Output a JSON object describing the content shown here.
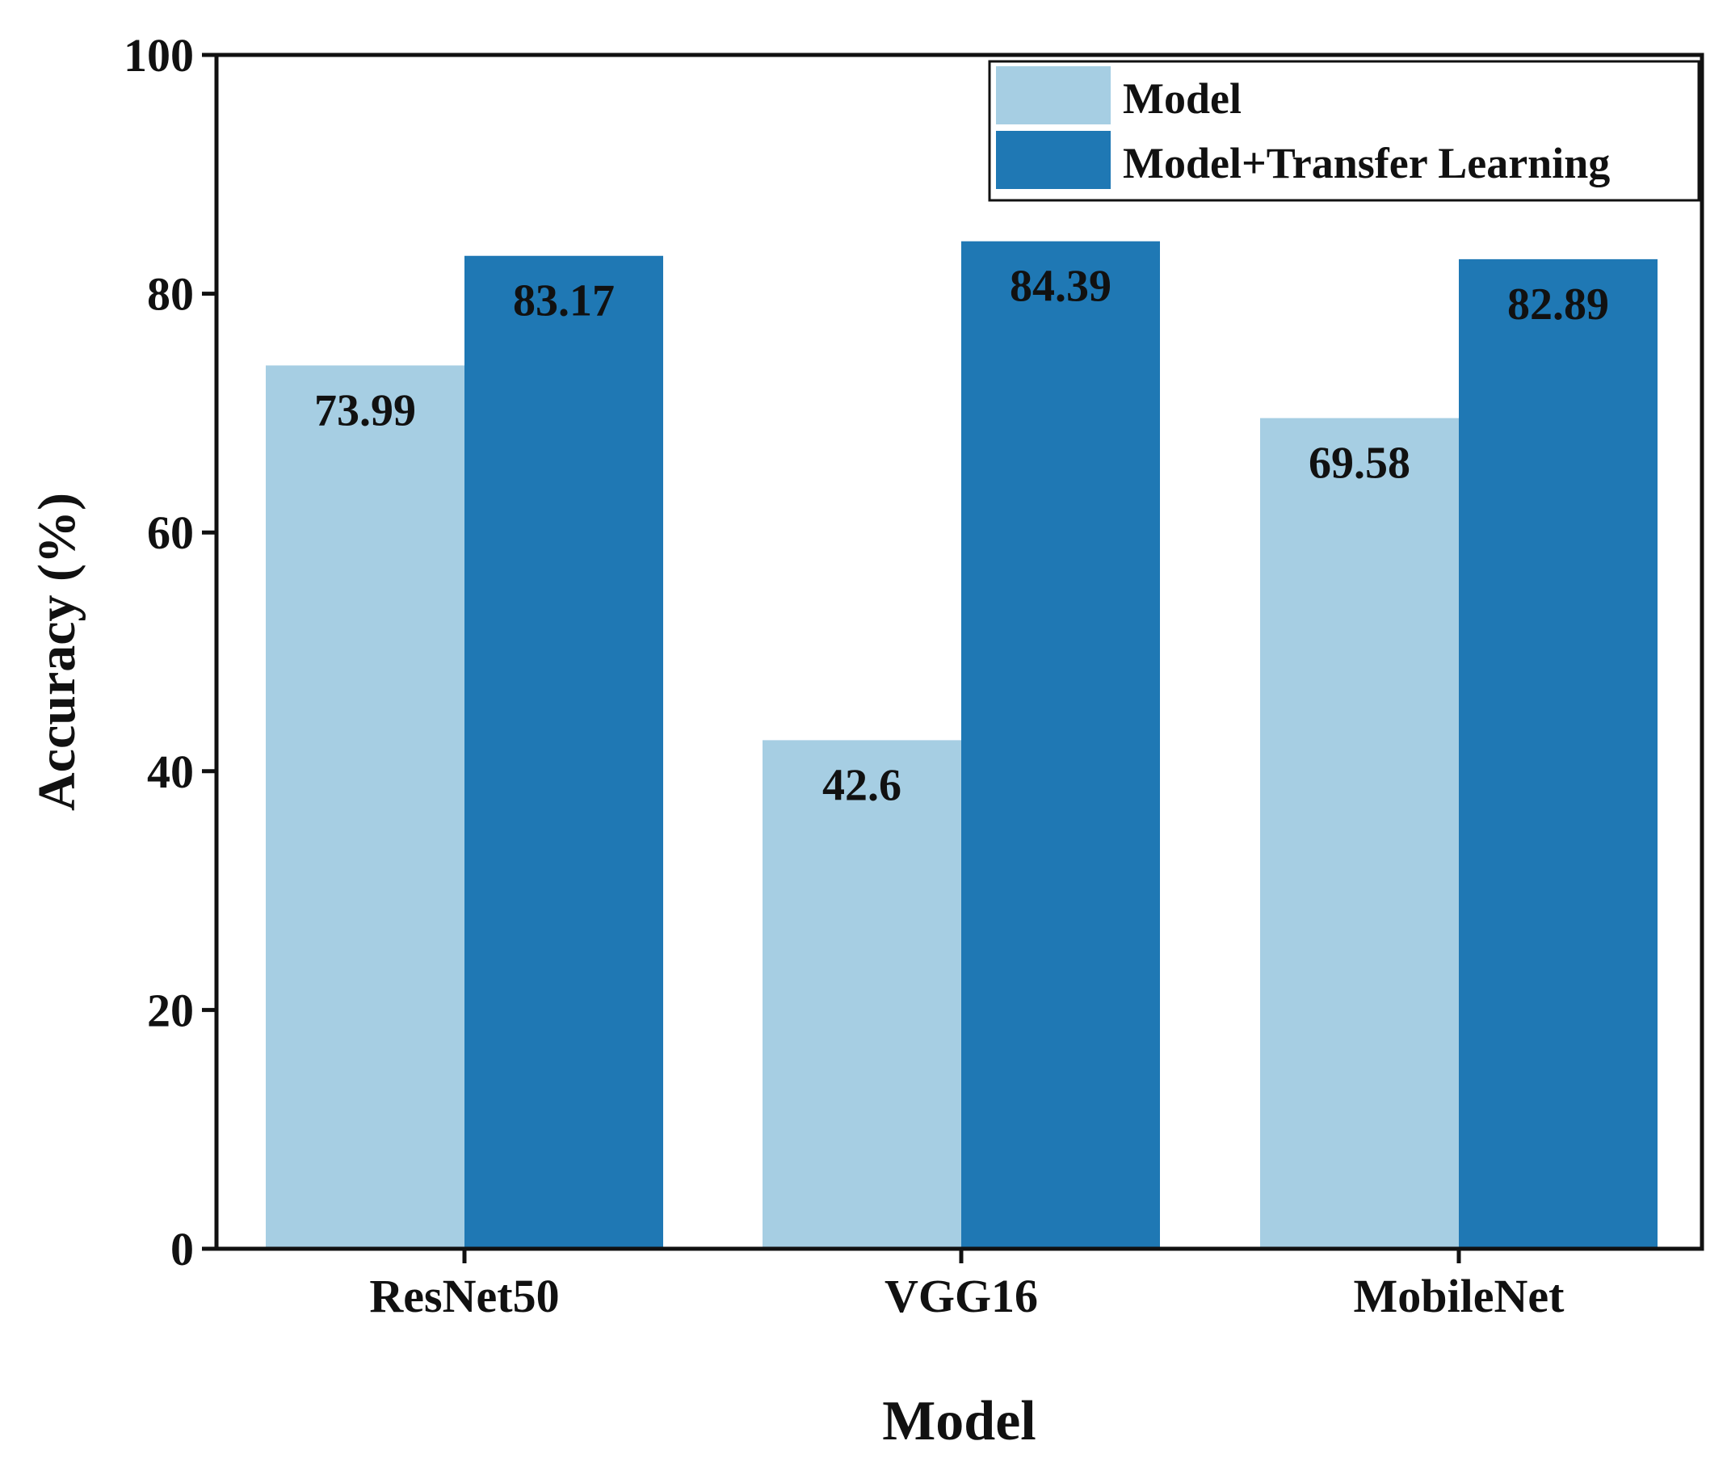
{
  "chart_data": {
    "type": "bar",
    "title": "",
    "xlabel": "Model",
    "ylabel": "Accuracy (%)",
    "categories": [
      "ResNet50",
      "VGG16",
      "MobileNet"
    ],
    "series": [
      {
        "name": "Model",
        "color": "#a6cee3",
        "values": [
          73.99,
          42.6,
          69.58
        ],
        "labels": [
          "73.99",
          "42.6",
          "69.58"
        ]
      },
      {
        "name": "Model+Transfer Learning",
        "color": "#1f78b4",
        "values": [
          83.17,
          84.39,
          82.89
        ],
        "labels": [
          "83.17",
          "84.39",
          "82.89"
        ]
      }
    ],
    "ylim": [
      0,
      100
    ],
    "yticks": [
      "0",
      "20",
      "40",
      "60",
      "80",
      "100"
    ],
    "grid": false,
    "legend_position": "top-right"
  }
}
